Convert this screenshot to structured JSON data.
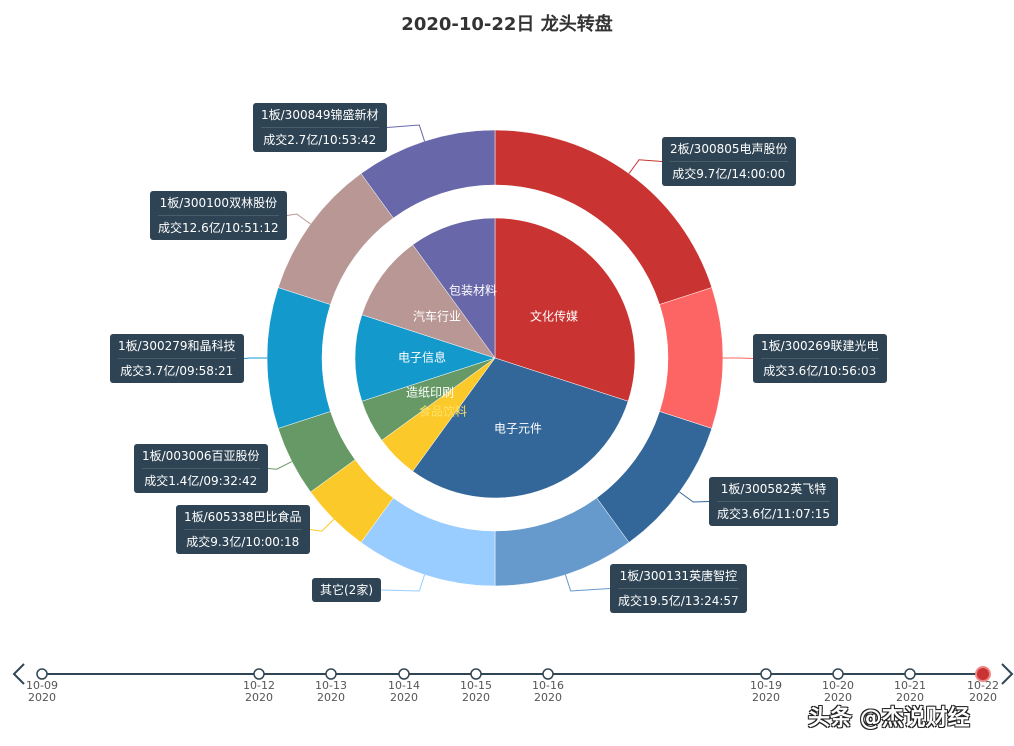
{
  "chart_data": {
    "type": "pie",
    "title": "2020-10-22日 龙头转盘",
    "inner": {
      "categories": [
        "文化传媒",
        "电子元件",
        "食品饮料",
        "造纸印刷",
        "电子信息",
        "汽车行业",
        "包装材料"
      ],
      "values": [
        6,
        6,
        1,
        1,
        2,
        2,
        2
      ],
      "colors": [
        "#c93331",
        "#336699",
        "#fcc92a",
        "#669966",
        "#1499cc",
        "#b99795",
        "#6767aa"
      ]
    },
    "outer": {
      "labels": [
        [
          "2板/300805电声股份",
          "成交9.7亿/14:00:00"
        ],
        [
          "1板/300269联建光电",
          "成交3.6亿/10:56:03"
        ],
        [
          "1板/300582英飞特",
          "成交3.6亿/11:07:15"
        ],
        [
          "1板/300131英唐智控",
          "成交19.5亿/13:24:57"
        ],
        [
          "其它(2家)",
          ""
        ],
        [
          "1板/605338巴比食品",
          "成交9.3亿/10:00:18"
        ],
        [
          "1板/003006百亚股份",
          "成交1.4亿/09:32:42"
        ],
        [
          "1板/300279和晶科技",
          "成交3.7亿/09:58:21"
        ],
        [
          "1板/300100双林股份",
          "成交12.6亿/10:51:12"
        ],
        [
          "1板/300849锦盛新材",
          "成交2.7亿/10:53:42"
        ]
      ],
      "values": [
        4,
        2,
        2,
        2,
        2,
        1,
        1,
        2,
        2,
        2
      ],
      "colors": [
        "#c93331",
        "#fd6565",
        "#336699",
        "#6699cc",
        "#99ccff",
        "#fcc92a",
        "#669966",
        "#1499cc",
        "#b99795",
        "#6767aa"
      ]
    }
  },
  "timeline": {
    "dates": [
      [
        "10-09",
        "2020"
      ],
      [
        "10-12",
        "2020"
      ],
      [
        "10-13",
        "2020"
      ],
      [
        "10-14",
        "2020"
      ],
      [
        "10-15",
        "2020"
      ],
      [
        "10-16",
        "2020"
      ],
      [
        "10-19",
        "2020"
      ],
      [
        "10-20",
        "2020"
      ],
      [
        "10-21",
        "2020"
      ],
      [
        "10-22",
        "2020"
      ]
    ],
    "current_index": 9,
    "current_color": "#c93331"
  },
  "watermark": "头条 @杰说财经"
}
